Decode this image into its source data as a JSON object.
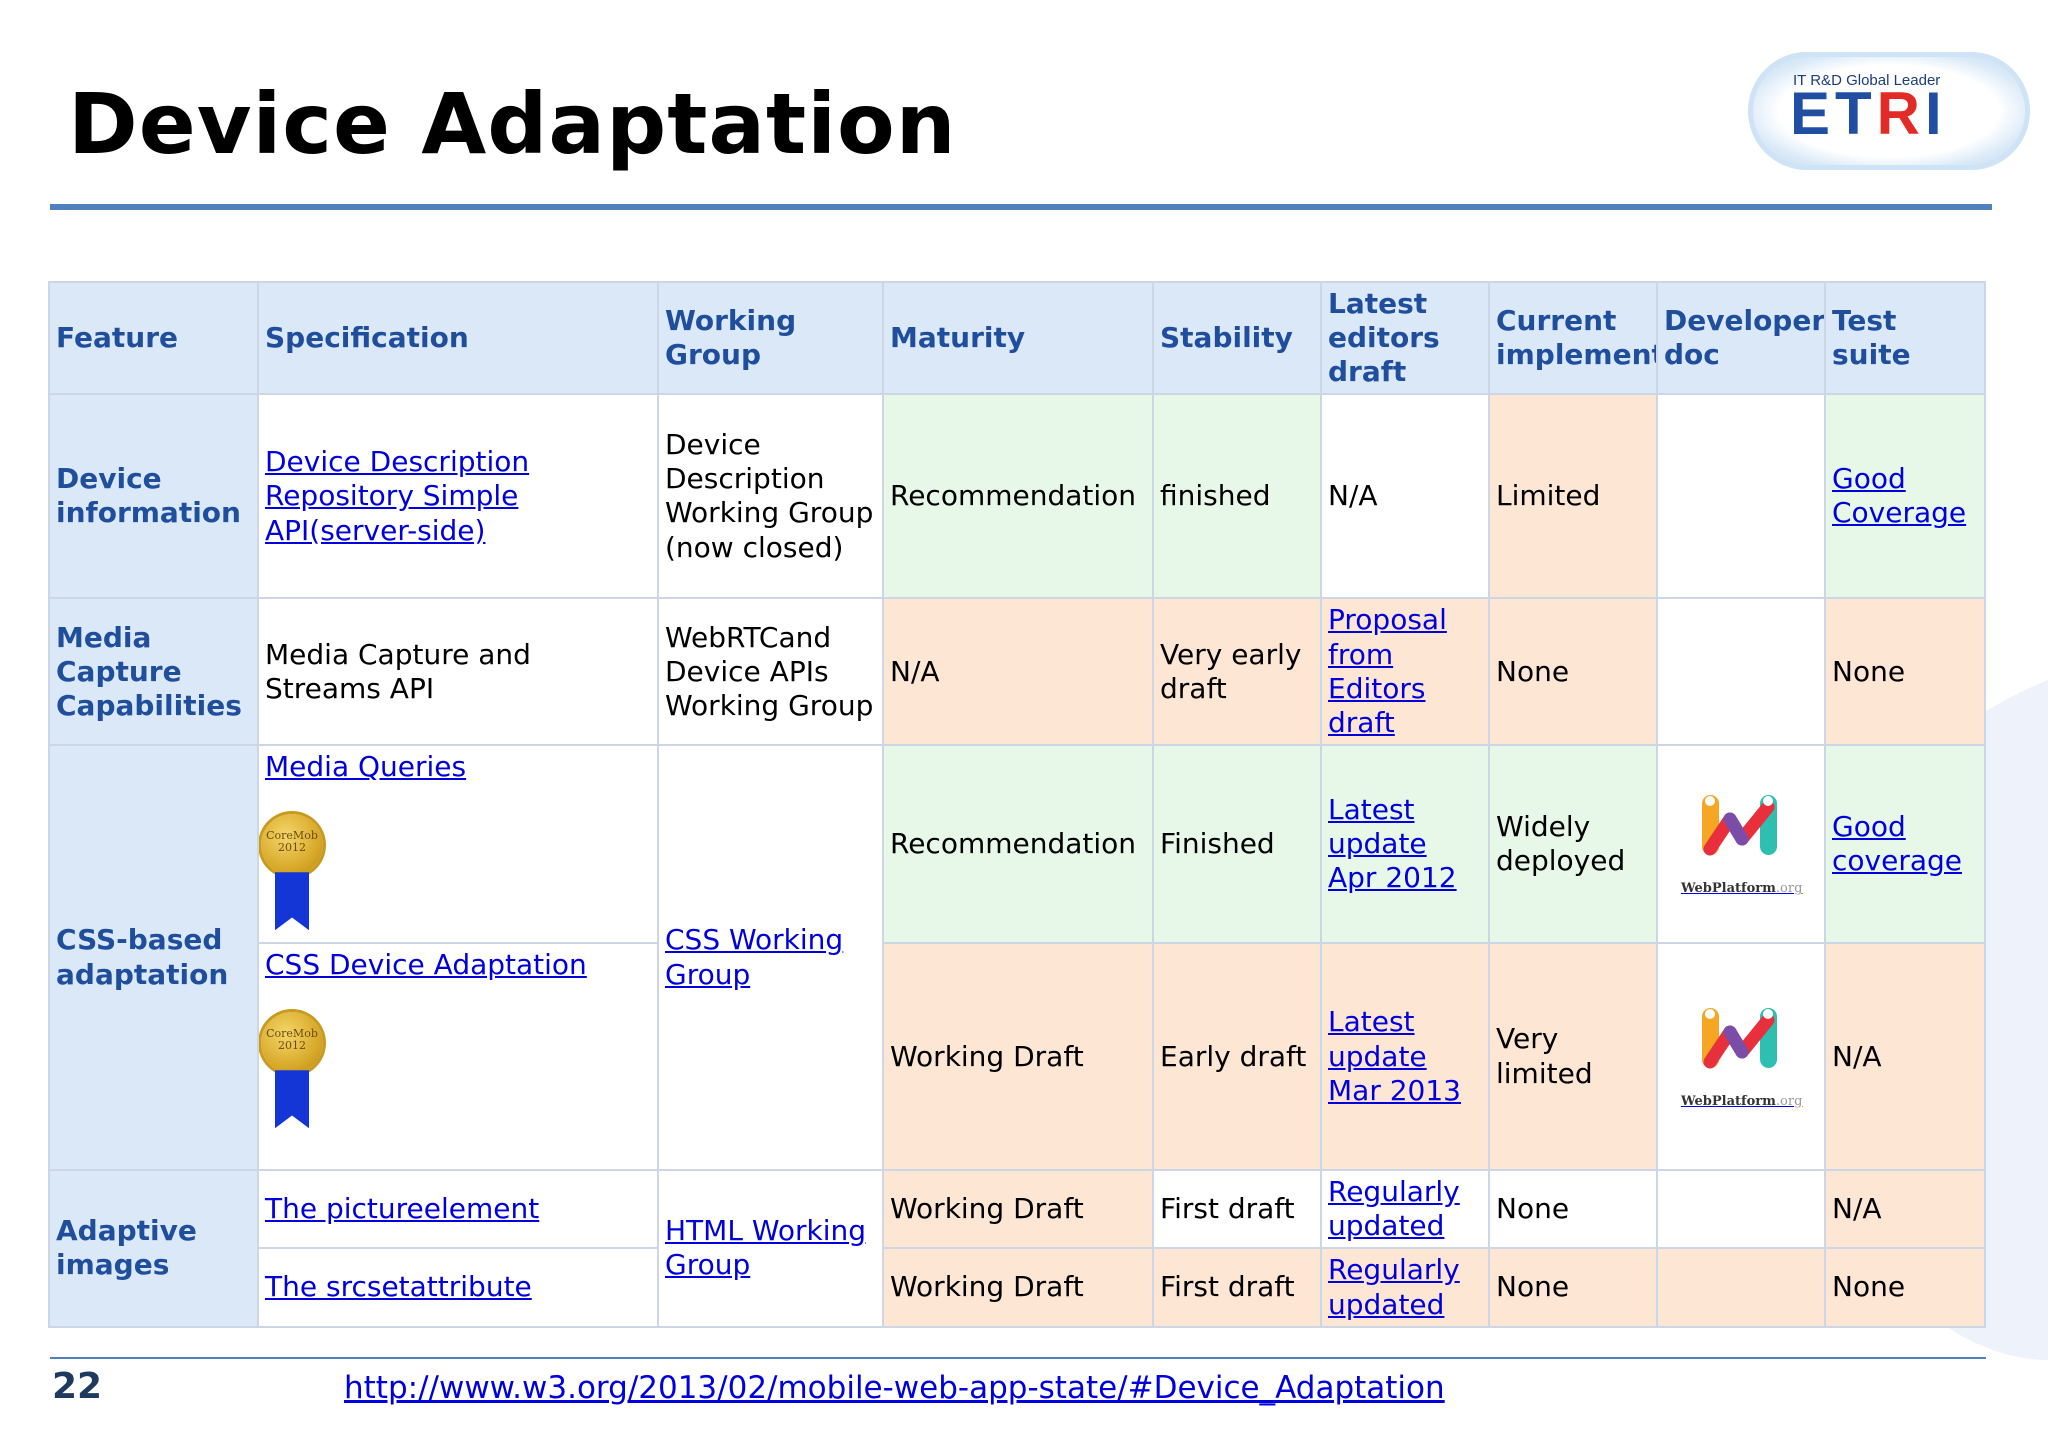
{
  "slide": {
    "title": "Device Adaptation",
    "page_number": "22",
    "source_url": "http://www.w3.org/2013/02/mobile-web-app-state/#Device_Adaptation"
  },
  "logo": {
    "tagline": "IT R&D Global Leader",
    "word_blue": "ET",
    "word_red": "R",
    "word_blue2": "I"
  },
  "colors": {
    "header_bg": "#dbe8f8",
    "header_text": "#1f4e9c",
    "green_cell": "#e8f8e8",
    "orange_cell": "#fde6d4",
    "link": "#0000dd",
    "rule": "#4f81bd"
  },
  "table": {
    "headers": [
      "Feature",
      "Specification",
      "Working Group",
      "Maturity",
      "Stability",
      "Latest editors draft",
      "Current implementations",
      "Developers doc",
      "Test suite"
    ],
    "rows": {
      "device_info": {
        "feature": "Device information",
        "spec": "Device Description Repository Simple API(server-side)",
        "wg": "Device Description Working Group (now closed)",
        "maturity": "Recommendation",
        "stability": "finished",
        "draft": "N/A",
        "impl": "Limited",
        "test": "Good Coverage"
      },
      "media_capture": {
        "feature": "Media Capture Capabilities",
        "spec": "Media Capture and Streams API",
        "wg": "WebRTCand Device APIs Working Group",
        "maturity": "N/A",
        "stability": "Very early draft",
        "draft": "Proposal from Editors draft",
        "impl": "None",
        "test": "None"
      },
      "css_mq": {
        "feature": "CSS-based adaptation",
        "spec": "Media Queries",
        "badge": "CoreMob 2012",
        "wg": "CSS Working Group",
        "maturity": "Recommendation",
        "stability": "Finished",
        "draft": "Latest update Apr 2012",
        "impl": "Widely deployed",
        "dev_doc": "WebPlatform",
        "dev_doc_suffix": ".org",
        "test": "Good coverage"
      },
      "css_da": {
        "spec": "CSS Device Adaptation",
        "badge": "CoreMob 2012",
        "maturity": "Working Draft",
        "stability": "Early draft",
        "draft": "Latest update Mar 2013",
        "impl": "Very limited",
        "dev_doc": "WebPlatform",
        "dev_doc_suffix": ".org",
        "test": "N/A"
      },
      "picture": {
        "feature": "Adaptive images",
        "spec": "The pictureelement",
        "wg": "HTML Working Group",
        "maturity": "Working Draft",
        "stability": "First draft",
        "draft": "Regularly updated",
        "impl": "None",
        "test": "N/A"
      },
      "srcset": {
        "spec": "The srcsetattribute",
        "maturity": "Working Draft",
        "stability": "First draft",
        "draft": "Regularly updated",
        "impl": "None",
        "test": "None"
      }
    }
  }
}
